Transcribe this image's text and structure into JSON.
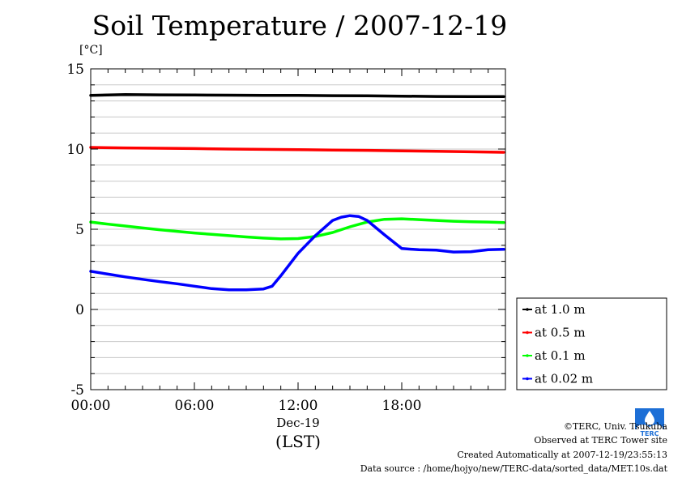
{
  "chart_data": {
    "type": "line",
    "title": "Soil Temperature / 2007-12-19",
    "ylabel": "[°C]",
    "xlabel_date": "Dec-19",
    "xlabel_tz": "(LST)",
    "xlim": [
      0,
      24
    ],
    "ylim": [
      -5,
      15
    ],
    "x_ticks": [
      {
        "value": 0,
        "label": "00:00"
      },
      {
        "value": 6,
        "label": "06:00"
      },
      {
        "value": 12,
        "label": "12:00"
      },
      {
        "value": 18,
        "label": "18:00"
      }
    ],
    "y_ticks": [
      {
        "value": -5,
        "label": "-5"
      },
      {
        "value": 0,
        "label": "0"
      },
      {
        "value": 5,
        "label": "5"
      },
      {
        "value": 10,
        "label": "10"
      },
      {
        "value": 15,
        "label": "15"
      }
    ],
    "grid": true,
    "legend_position": "right-bottom",
    "series": [
      {
        "name": "at 1.0 m",
        "color": "#000000",
        "x": [
          0,
          2,
          4,
          6,
          8,
          10,
          12,
          14,
          16,
          18,
          20,
          22,
          23.9
        ],
        "y": [
          13.35,
          13.4,
          13.38,
          13.37,
          13.36,
          13.35,
          13.35,
          13.33,
          13.32,
          13.3,
          13.28,
          13.27,
          13.27
        ]
      },
      {
        "name": "at 0.5 m",
        "color": "#ff0000",
        "x": [
          0,
          2,
          4,
          6,
          8,
          10,
          12,
          14,
          16,
          18,
          20,
          22,
          23.9
        ],
        "y": [
          10.1,
          10.07,
          10.05,
          10.03,
          10.0,
          9.98,
          9.96,
          9.94,
          9.92,
          9.89,
          9.86,
          9.83,
          9.8
        ]
      },
      {
        "name": "at 0.1 m",
        "color": "#00ff00",
        "x": [
          0,
          1,
          2,
          3,
          4,
          5,
          6,
          7,
          8,
          9,
          10,
          11,
          12,
          13,
          14,
          15,
          16,
          17,
          18,
          19,
          20,
          21,
          22,
          23,
          23.9
        ],
        "y": [
          5.45,
          5.32,
          5.2,
          5.08,
          4.97,
          4.87,
          4.77,
          4.68,
          4.6,
          4.52,
          4.45,
          4.4,
          4.42,
          4.55,
          4.8,
          5.15,
          5.45,
          5.62,
          5.65,
          5.6,
          5.55,
          5.5,
          5.47,
          5.45,
          5.42
        ]
      },
      {
        "name": "at 0.02 m",
        "color": "#0000ff",
        "x": [
          0,
          1,
          2,
          3,
          4,
          5,
          6,
          7,
          8,
          9,
          10,
          10.5,
          11,
          12,
          13,
          14,
          14.5,
          15,
          15.5,
          16,
          17,
          18,
          19,
          20,
          21,
          22,
          23,
          23.9
        ],
        "y": [
          2.38,
          2.2,
          2.03,
          1.88,
          1.73,
          1.6,
          1.45,
          1.3,
          1.22,
          1.22,
          1.28,
          1.45,
          2.1,
          3.5,
          4.6,
          5.55,
          5.75,
          5.85,
          5.8,
          5.55,
          4.65,
          3.8,
          3.72,
          3.7,
          3.58,
          3.6,
          3.72,
          3.75
        ]
      }
    ]
  },
  "credits": {
    "copyright": "©TERC, Univ. Tsukuba",
    "observed": "Observed at TERC Tower site",
    "created": "Created Automatically at 2007-12-19/23:55:13",
    "source": "Data source : /home/hojyo/new/TERC-data/sorted_data/MET.10s.dat",
    "logo_text": "TERC",
    "logo_color": "#1d6fd6"
  }
}
